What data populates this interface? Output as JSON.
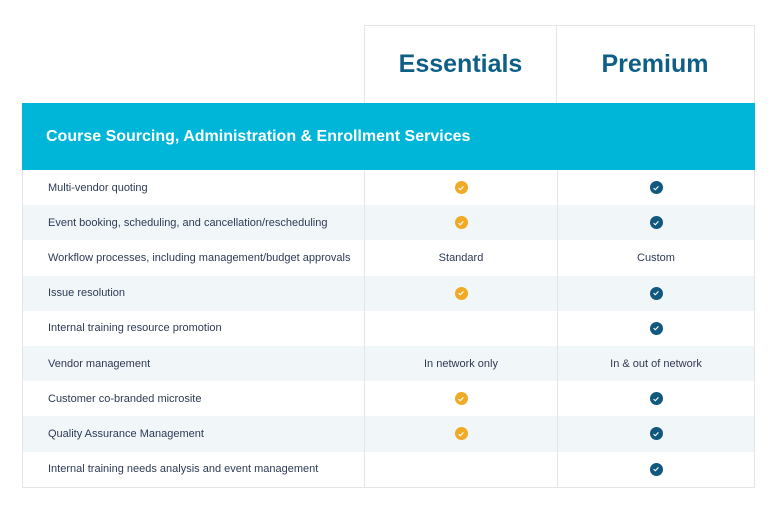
{
  "columns": [
    "Essentials",
    "Premium"
  ],
  "section_title": "Course Sourcing, Administration & Enrollment Services",
  "colors": {
    "essentials_check": "#f0aa26",
    "premium_check": "#10587e",
    "banner": "#00b6d8"
  },
  "rows": [
    {
      "feature": "Multi-vendor quoting",
      "essentials": "check",
      "premium": "check"
    },
    {
      "feature": "Event booking, scheduling, and cancellation/rescheduling",
      "essentials": "check",
      "premium": "check"
    },
    {
      "feature": "Workflow processes, including management/budget approvals",
      "essentials": "Standard",
      "premium": "Custom"
    },
    {
      "feature": "Issue resolution",
      "essentials": "check",
      "premium": "check"
    },
    {
      "feature": "Internal training resource promotion",
      "essentials": "",
      "premium": "check"
    },
    {
      "feature": "Vendor management",
      "essentials": "In network only",
      "premium": "In & out of network"
    },
    {
      "feature": "Customer co-branded microsite",
      "essentials": "check",
      "premium": "check"
    },
    {
      "feature": "Quality Assurance Management",
      "essentials": "check",
      "premium": "check"
    },
    {
      "feature": "Internal training needs analysis and event management",
      "essentials": "",
      "premium": "check"
    }
  ]
}
